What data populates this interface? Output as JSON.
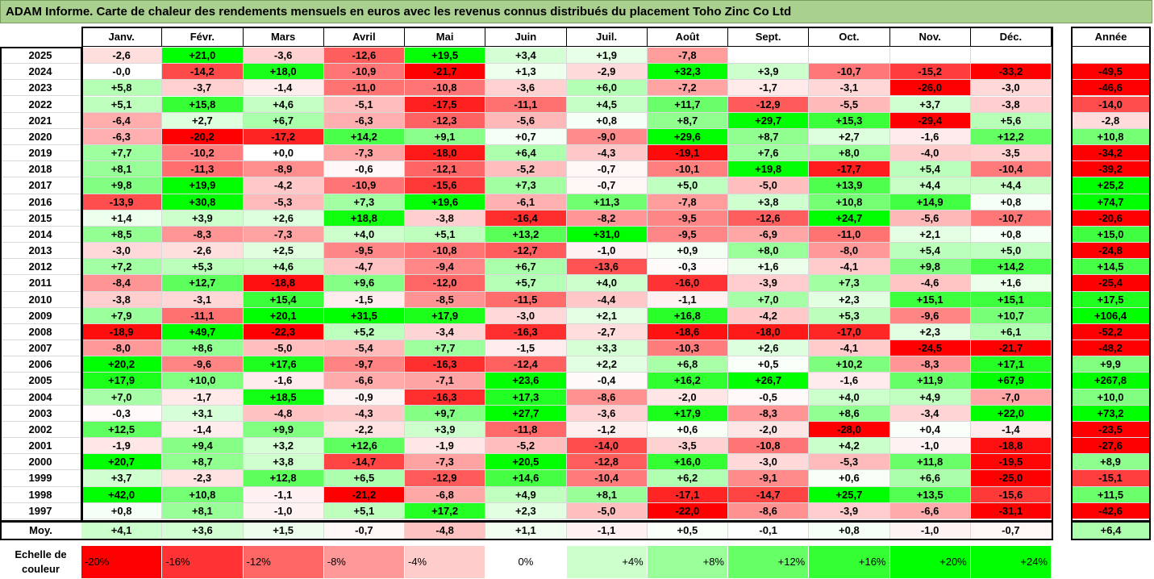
{
  "title": "ADAM Informe. Carte de chaleur des rendements mensuels en euros avec les revenus connus distribués du placement Toho Zinc Co Ltd",
  "chart_data": {
    "type": "heatmap",
    "months": [
      "Janv.",
      "Févr.",
      "Mars",
      "Avril",
      "Mai",
      "Juin",
      "Juil.",
      "Août",
      "Sept.",
      "Oct.",
      "Nov.",
      "Déc."
    ],
    "year_header": "Année",
    "average_label": "Moy.",
    "rows": [
      {
        "year": "2025",
        "values": [
          "-2,6",
          "+21,0",
          "-3,6",
          "-12,6",
          "+19,5",
          "+3,4",
          "+1,9",
          "-7,8",
          "",
          "",
          "",
          ""
        ],
        "annual": ""
      },
      {
        "year": "2024",
        "values": [
          "-0,0",
          "-14,2",
          "+18,0",
          "-10,9",
          "-21,7",
          "+1,3",
          "-2,9",
          "+32,3",
          "+3,9",
          "-10,7",
          "-15,2",
          "-33,2"
        ],
        "annual": "-49,5"
      },
      {
        "year": "2023",
        "values": [
          "+5,8",
          "-3,7",
          "-1,4",
          "-11,0",
          "-10,8",
          "-3,6",
          "+6,0",
          "-7,2",
          "-1,7",
          "-3,1",
          "-26,0",
          "-3,0"
        ],
        "annual": "-46,6"
      },
      {
        "year": "2022",
        "values": [
          "+5,1",
          "+15,8",
          "+4,6",
          "-5,1",
          "-17,5",
          "-11,1",
          "+4,5",
          "+11,7",
          "-12,9",
          "-5,5",
          "+3,7",
          "-3,8"
        ],
        "annual": "-14,0"
      },
      {
        "year": "2021",
        "values": [
          "-6,4",
          "+2,7",
          "+6,7",
          "-6,3",
          "-12,3",
          "-5,6",
          "+0,8",
          "+8,7",
          "+29,7",
          "+15,3",
          "-29,4",
          "+5,6"
        ],
        "annual": "-2,8"
      },
      {
        "year": "2020",
        "values": [
          "-6,3",
          "-20,2",
          "-17,2",
          "+14,2",
          "+9,1",
          "+0,7",
          "-9,0",
          "+29,6",
          "+8,7",
          "+2,7",
          "-1,6",
          "+12,2"
        ],
        "annual": "+10,8"
      },
      {
        "year": "2019",
        "values": [
          "+7,7",
          "-10,2",
          "+0,0",
          "-7,3",
          "-18,0",
          "+6,4",
          "-4,3",
          "-19,1",
          "+7,6",
          "+8,0",
          "-4,0",
          "-3,5"
        ],
        "annual": "-34,2"
      },
      {
        "year": "2018",
        "values": [
          "+8,1",
          "-11,3",
          "-8,9",
          "-0,6",
          "-12,1",
          "-5,2",
          "-0,7",
          "-10,1",
          "+19,8",
          "-17,7",
          "+5,4",
          "-10,4"
        ],
        "annual": "-39,2"
      },
      {
        "year": "2017",
        "values": [
          "+9,8",
          "+19,9",
          "-4,2",
          "-10,9",
          "-15,6",
          "+7,3",
          "-0,7",
          "+5,0",
          "-5,0",
          "+13,9",
          "+4,4",
          "+4,4"
        ],
        "annual": "+25,2"
      },
      {
        "year": "2016",
        "values": [
          "-13,9",
          "+30,8",
          "-5,3",
          "+7,3",
          "+19,6",
          "-6,1",
          "+11,3",
          "-7,8",
          "+3,8",
          "+10,8",
          "+14,9",
          "+0,8"
        ],
        "annual": "+74,7"
      },
      {
        "year": "2015",
        "values": [
          "+1,4",
          "+3,9",
          "+2,6",
          "+18,8",
          "-3,8",
          "-16,4",
          "-8,2",
          "-9,5",
          "-12,6",
          "+24,7",
          "-5,6",
          "-10,7"
        ],
        "annual": "-20,6"
      },
      {
        "year": "2014",
        "values": [
          "+8,5",
          "-8,3",
          "-7,3",
          "+4,0",
          "+5,1",
          "+13,2",
          "+31,0",
          "-9,5",
          "-6,9",
          "-11,0",
          "+2,1",
          "+0,8"
        ],
        "annual": "+15,0"
      },
      {
        "year": "2013",
        "values": [
          "-3,0",
          "-2,6",
          "+2,5",
          "-9,5",
          "-10,8",
          "-12,7",
          "-1,0",
          "+0,9",
          "+8,0",
          "-8,0",
          "+5,4",
          "+5,0"
        ],
        "annual": "-24,8"
      },
      {
        "year": "2012",
        "values": [
          "+7,2",
          "+5,3",
          "+4,6",
          "-4,7",
          "-9,4",
          "+6,7",
          "-13,6",
          "-0,3",
          "+1,6",
          "-4,1",
          "+9,8",
          "+14,2"
        ],
        "annual": "+14,5"
      },
      {
        "year": "2011",
        "values": [
          "-8,4",
          "+12,7",
          "-18,8",
          "+9,6",
          "-12,0",
          "+5,7",
          "+4,0",
          "-16,0",
          "-3,9",
          "+7,3",
          "-4,6",
          "+1,6"
        ],
        "annual": "-25,4"
      },
      {
        "year": "2010",
        "values": [
          "-3,8",
          "-3,1",
          "+15,4",
          "-1,5",
          "-8,5",
          "-11,5",
          "-4,4",
          "-1,1",
          "+7,0",
          "+2,3",
          "+15,1",
          "+15,1"
        ],
        "annual": "+17,5"
      },
      {
        "year": "2009",
        "values": [
          "+7,9",
          "-11,1",
          "+20,1",
          "+31,5",
          "+17,9",
          "-3,0",
          "+2,1",
          "+16,8",
          "-4,2",
          "+5,3",
          "-9,6",
          "+10,7"
        ],
        "annual": "+106,4"
      },
      {
        "year": "2008",
        "values": [
          "-18,9",
          "+49,7",
          "-22,3",
          "+5,2",
          "-3,4",
          "-16,3",
          "-2,7",
          "-18,6",
          "-18,0",
          "-17,0",
          "+2,3",
          "+6,1"
        ],
        "annual": "-52,2"
      },
      {
        "year": "2007",
        "values": [
          "-8,0",
          "+8,6",
          "-5,0",
          "-5,4",
          "+7,7",
          "-1,5",
          "+3,3",
          "-10,3",
          "+2,6",
          "-4,1",
          "-24,5",
          "-21,7"
        ],
        "annual": "-48,2"
      },
      {
        "year": "2006",
        "values": [
          "+20,2",
          "-9,6",
          "+17,6",
          "-9,7",
          "-16,3",
          "-12,4",
          "+2,2",
          "+6,8",
          "+0,5",
          "+10,2",
          "-8,3",
          "+17,1"
        ],
        "annual": "+9,9"
      },
      {
        "year": "2005",
        "values": [
          "+17,9",
          "+10,0",
          "-1,6",
          "-6,6",
          "-7,1",
          "+23,6",
          "-0,4",
          "+16,2",
          "+26,7",
          "-1,6",
          "+11,9",
          "+67,9"
        ],
        "annual": "+267,8"
      },
      {
        "year": "2004",
        "values": [
          "+7,0",
          "-1,7",
          "+18,5",
          "-0,9",
          "-16,3",
          "+17,3",
          "-8,6",
          "-2,0",
          "-0,5",
          "+4,0",
          "+4,9",
          "-7,0"
        ],
        "annual": "+10,0"
      },
      {
        "year": "2003",
        "values": [
          "-0,3",
          "+3,1",
          "-4,8",
          "-4,3",
          "+9,7",
          "+27,7",
          "-3,6",
          "+17,9",
          "-8,3",
          "+8,6",
          "-3,4",
          "+22,0"
        ],
        "annual": "+73,2"
      },
      {
        "year": "2002",
        "values": [
          "+12,5",
          "-1,4",
          "+9,9",
          "-2,2",
          "+3,9",
          "-11,8",
          "-1,2",
          "+0,6",
          "-2,0",
          "-28,0",
          "+0,4",
          "-1,4"
        ],
        "annual": "-23,5"
      },
      {
        "year": "2001",
        "values": [
          "-1,9",
          "+9,4",
          "+3,2",
          "+12,6",
          "-1,9",
          "-5,2",
          "-14,0",
          "-3,5",
          "-10,8",
          "+4,2",
          "-1,0",
          "-18,8"
        ],
        "annual": "-27,6"
      },
      {
        "year": "2000",
        "values": [
          "+20,7",
          "+8,7",
          "+3,8",
          "-14,7",
          "-7,3",
          "+20,5",
          "-12,8",
          "+16,0",
          "-3,0",
          "-5,3",
          "+11,8",
          "-19,5"
        ],
        "annual": "+8,9"
      },
      {
        "year": "1999",
        "values": [
          "+3,7",
          "-2,3",
          "+12,8",
          "+6,5",
          "-12,9",
          "+14,6",
          "-10,4",
          "+6,2",
          "-9,1",
          "+0,6",
          "+6,6",
          "-25,0"
        ],
        "annual": "-15,1"
      },
      {
        "year": "1998",
        "values": [
          "+42,0",
          "+10,8",
          "-1,1",
          "-21,2",
          "-6,8",
          "+4,9",
          "+8,1",
          "-17,1",
          "-14,7",
          "+25,7",
          "+13,5",
          "-15,6"
        ],
        "annual": "+11,5"
      },
      {
        "year": "1997",
        "values": [
          "+0,8",
          "+8,1",
          "-1,0",
          "+5,1",
          "+17,2",
          "+2,3",
          "-5,0",
          "-22,0",
          "-8,6",
          "-3,9",
          "-6,6",
          "-31,1"
        ],
        "annual": "-42,6"
      }
    ],
    "averages": [
      "+4,1",
      "+3,6",
      "+1,5",
      "-0,7",
      "-4,8",
      "+1,1",
      "-1,1",
      "+0,5",
      "-0,1",
      "+0,8",
      "-1,0",
      "-0,7"
    ],
    "average_annual": "+6,4",
    "scale_label": "Echelle de couleur",
    "scale": [
      {
        "label": "-20%",
        "value": -20,
        "align": "left"
      },
      {
        "label": "-16%",
        "value": -16,
        "align": "left"
      },
      {
        "label": "-12%",
        "value": -12,
        "align": "left"
      },
      {
        "label": "-8%",
        "value": -8,
        "align": "left"
      },
      {
        "label": "-4%",
        "value": -4,
        "align": "left"
      },
      {
        "label": "0%",
        "value": 0,
        "align": "center"
      },
      {
        "label": "+4%",
        "value": 4,
        "align": "right"
      },
      {
        "label": "+8%",
        "value": 8,
        "align": "right"
      },
      {
        "label": "+12%",
        "value": 12,
        "align": "right"
      },
      {
        "label": "+16%",
        "value": 16,
        "align": "right"
      },
      {
        "label": "+20%",
        "value": 20,
        "align": "right"
      },
      {
        "label": "+24%",
        "value": 24,
        "align": "right"
      }
    ],
    "colors": {
      "negative": "#ff0000",
      "positive": "#00ff00",
      "neutral": "#ffffff",
      "title_bg": "#a9d08e"
    }
  }
}
